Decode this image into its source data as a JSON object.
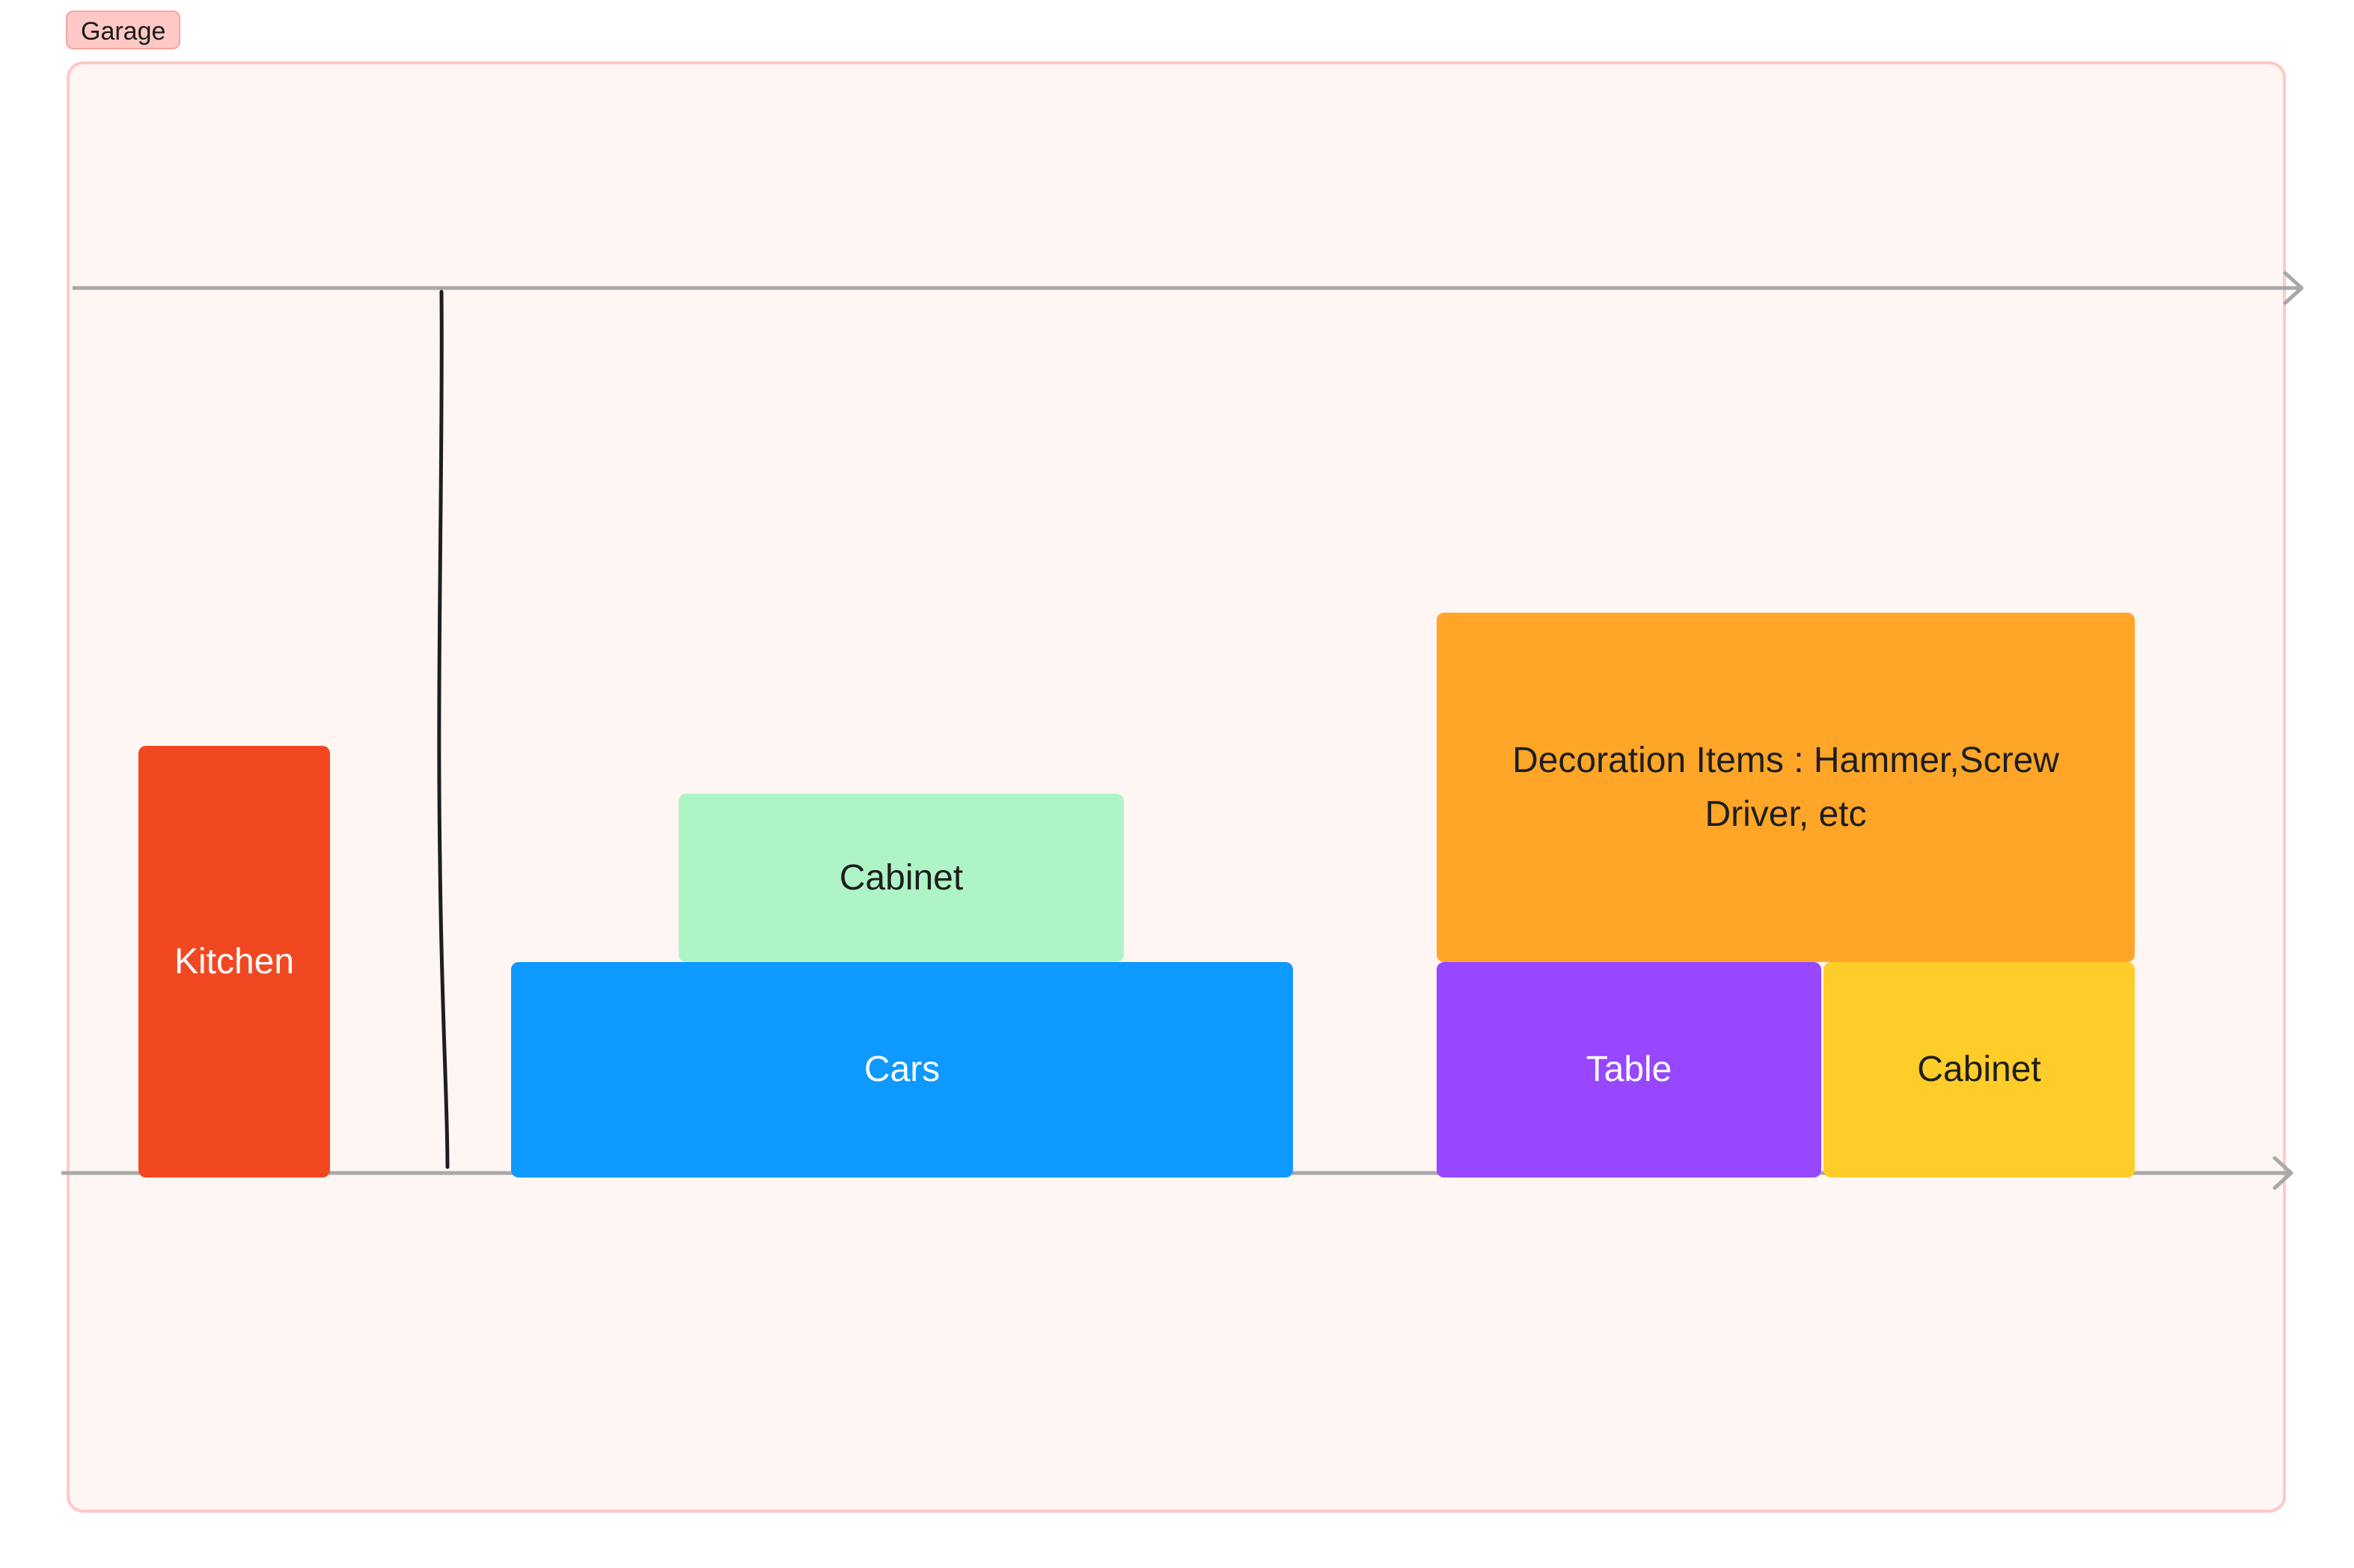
{
  "section": {
    "label": "Garage",
    "tag_color": "#ffc8c5",
    "background_color": "#fff5f3",
    "border_color": "#ffc9c5"
  },
  "connectors": {
    "color": "#a8a8a8",
    "divider_color": "#1e1e1e"
  },
  "shapes": {
    "kitchen": {
      "label": "Kitchen",
      "color": "#f24822",
      "text_color": "#ffffff"
    },
    "cabinet_green": {
      "label": "Cabinet",
      "color": "#aff4c6",
      "text_color": "#1e1e1e"
    },
    "cars": {
      "label": "Cars",
      "color": "#0d99ff",
      "text_color": "#ffffff"
    },
    "decoration": {
      "label": "Decoration Items : Hammer,Screw Driver, etc",
      "color": "#ffa629",
      "text_color": "#1e1e1e"
    },
    "table": {
      "label": "Table",
      "color": "#9747ff",
      "text_color": "#ffffff"
    },
    "cabinet_yellow": {
      "label": "Cabinet",
      "color": "#ffcd29",
      "text_color": "#1e1e1e"
    }
  }
}
